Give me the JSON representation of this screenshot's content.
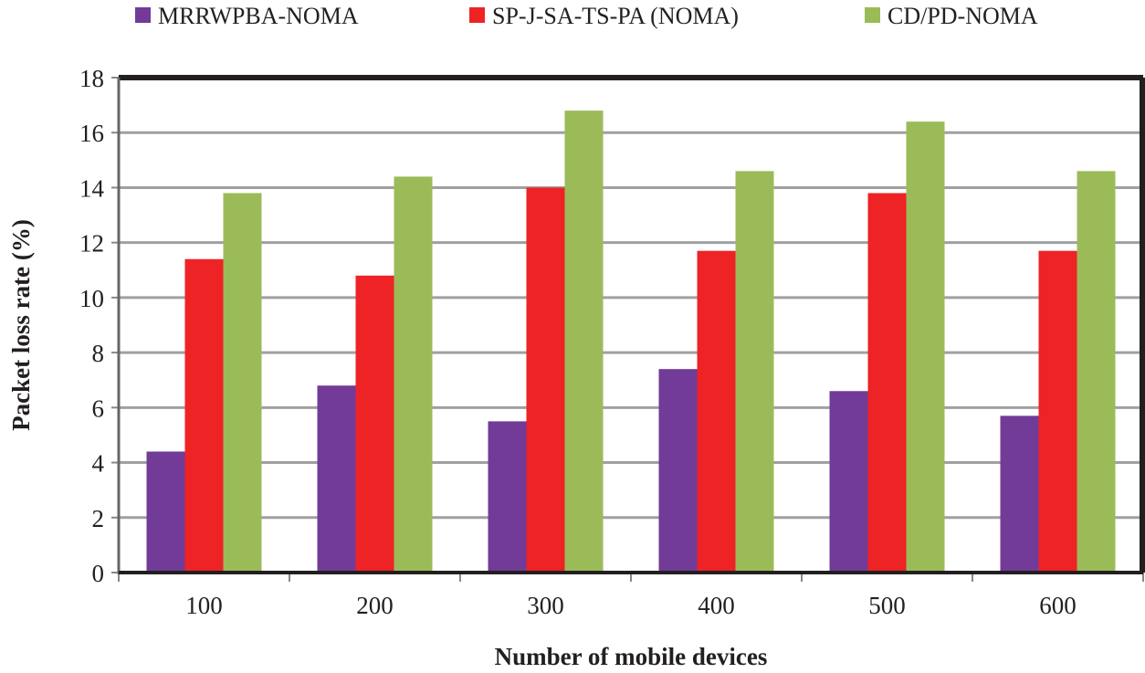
{
  "chart_data": {
    "type": "bar",
    "title": "",
    "xlabel": "Number of mobile devices",
    "ylabel": "Packet loss rate (%)",
    "categories": [
      "100",
      "200",
      "300",
      "400",
      "500",
      "600"
    ],
    "ylim": [
      0,
      18
    ],
    "yticks": [
      "0",
      "2",
      "4",
      "6",
      "8",
      "10",
      "12",
      "14",
      "16",
      "18"
    ],
    "grid": true,
    "legend_position": "top",
    "series": [
      {
        "name": "MRRWPBA-NOMA",
        "color": "#713B97",
        "values": [
          4.4,
          6.8,
          5.5,
          7.4,
          6.6,
          5.7
        ]
      },
      {
        "name": "SP-J-SA-TS-PA (NOMA)",
        "color": "#EE2326",
        "values": [
          11.4,
          10.8,
          14.0,
          11.7,
          13.8,
          11.7
        ]
      },
      {
        "name": "CD/PD-NOMA",
        "color": "#9BBB59",
        "values": [
          13.8,
          14.4,
          16.8,
          14.6,
          16.4,
          14.6
        ]
      }
    ]
  }
}
